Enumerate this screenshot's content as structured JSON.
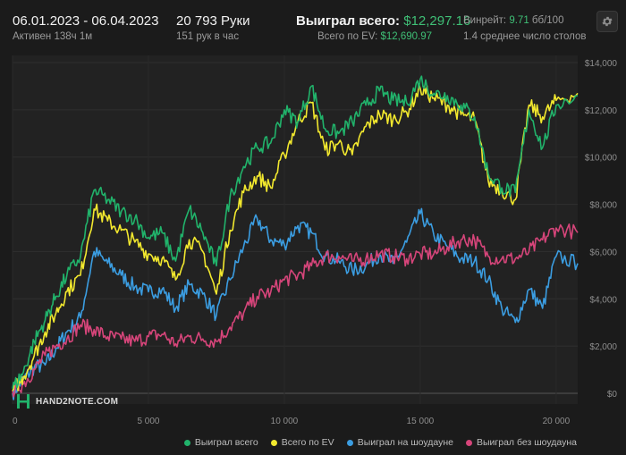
{
  "header": {
    "date_range": "06.01.2023 - 06.04.2023",
    "active": "Активен 138ч 1м",
    "hands": "20 793 Руки",
    "hands_per_hour": "151 рук в час",
    "won_total_label": "Выиграл всего:",
    "won_total_value": "$12,297.16",
    "ev_label": "Всего по EV:",
    "ev_value": "$12,690.97",
    "winrate_label": "Винрейт:",
    "winrate_value": "9.71",
    "winrate_suffix": "бб/100",
    "tables": "1.4 среднее число столов",
    "settings_icon": "gear-icon"
  },
  "logo": {
    "text": "HAND2NOTE.COM"
  },
  "chart_data": {
    "type": "line",
    "xlim": [
      0,
      20793
    ],
    "ylim": [
      -200,
      14000
    ],
    "x_ticks": [
      0,
      5000,
      10000,
      15000,
      20000
    ],
    "x_tick_labels": [
      "0",
      "5 000",
      "10 000",
      "15 000",
      "20 000"
    ],
    "y_ticks": [
      0,
      2000,
      4000,
      6000,
      8000,
      10000,
      12000,
      14000
    ],
    "y_tick_labels": [
      "$0",
      "$2,000",
      "$4,000",
      "$6,000",
      "$8,000",
      "$10,000",
      "$12,000",
      "$14,000"
    ],
    "grid": true,
    "legend_position": "bottom-right",
    "series": [
      {
        "name": "Выиграл всего",
        "color": "#21b36b",
        "x": [
          0,
          400,
          800,
          1200,
          1600,
          2000,
          2500,
          3000,
          3500,
          4000,
          4500,
          5000,
          5500,
          6000,
          6500,
          7000,
          7500,
          8000,
          8500,
          9000,
          9500,
          10000,
          10500,
          11000,
          11500,
          12000,
          12500,
          13000,
          13500,
          14000,
          14500,
          15000,
          15500,
          16000,
          16500,
          17000,
          17500,
          18000,
          18500,
          19000,
          19500,
          20000,
          20793
        ],
        "y": [
          200,
          900,
          2200,
          3100,
          4100,
          5000,
          5800,
          8600,
          8200,
          7700,
          7400,
          6600,
          6800,
          5600,
          7800,
          6800,
          5400,
          8300,
          9600,
          10400,
          10600,
          12000,
          11500,
          13000,
          11200,
          11000,
          11500,
          12200,
          12800,
          12400,
          12300,
          13300,
          12700,
          12600,
          12200,
          11700,
          9300,
          8700,
          8500,
          12000,
          10400,
          12200,
          12600
        ]
      },
      {
        "name": "Всего по EV",
        "color": "#f2e82e",
        "x": [
          0,
          400,
          800,
          1200,
          1600,
          2000,
          2500,
          3000,
          3500,
          4000,
          4500,
          5000,
          5500,
          6000,
          6500,
          7000,
          7500,
          8000,
          8500,
          9000,
          9500,
          10000,
          10500,
          11000,
          11500,
          12000,
          12500,
          13000,
          13500,
          14000,
          14500,
          15000,
          15500,
          16000,
          16500,
          17000,
          17500,
          18000,
          18500,
          19000,
          19500,
          20000,
          20793
        ],
        "y": [
          100,
          700,
          1600,
          2600,
          3400,
          4300,
          5000,
          7800,
          7300,
          6900,
          6400,
          5900,
          5700,
          4800,
          6500,
          6000,
          4200,
          6900,
          8500,
          9200,
          8700,
          10100,
          11500,
          12300,
          10300,
          10600,
          10100,
          11300,
          11800,
          11600,
          11900,
          12900,
          12500,
          12200,
          11800,
          11600,
          9000,
          8600,
          8200,
          12200,
          11700,
          12400,
          12700
        ]
      },
      {
        "name": "Выиграл на шоудауне",
        "color": "#3b9de1",
        "x": [
          0,
          400,
          800,
          1200,
          1600,
          2000,
          2500,
          3000,
          3500,
          4000,
          4500,
          5000,
          5500,
          6000,
          6500,
          7000,
          7500,
          8000,
          8500,
          9000,
          9500,
          10000,
          10500,
          11000,
          11500,
          12000,
          12500,
          13000,
          13500,
          14000,
          14500,
          15000,
          15500,
          16000,
          16500,
          17000,
          17500,
          18000,
          18500,
          19000,
          19500,
          20000,
          20793
        ],
        "y": [
          0,
          600,
          1100,
          1200,
          1900,
          2600,
          3200,
          6000,
          5500,
          5000,
          4500,
          4300,
          4400,
          3600,
          4600,
          4200,
          3300,
          4800,
          6200,
          7400,
          6500,
          6300,
          7100,
          6800,
          5800,
          5600,
          5200,
          5400,
          5900,
          5500,
          6400,
          7600,
          6700,
          6200,
          5700,
          5600,
          4800,
          3600,
          3000,
          4400,
          3600,
          5800,
          5500
        ]
      },
      {
        "name": "Выиграл без шоудауна",
        "color": "#d6457a",
        "x": [
          0,
          400,
          800,
          1200,
          1600,
          2000,
          2500,
          3000,
          3500,
          4000,
          4500,
          5000,
          5500,
          6000,
          6500,
          7000,
          7500,
          8000,
          8500,
          9000,
          9500,
          10000,
          10500,
          11000,
          11500,
          12000,
          12500,
          13000,
          13500,
          14000,
          14500,
          15000,
          15500,
          16000,
          16500,
          17000,
          17500,
          18000,
          18500,
          19000,
          19500,
          20000,
          20793
        ],
        "y": [
          100,
          400,
          1000,
          1600,
          2000,
          2300,
          2900,
          2700,
          2400,
          2300,
          2200,
          2400,
          2500,
          2100,
          2400,
          2300,
          2200,
          2800,
          3400,
          4100,
          4300,
          4800,
          5000,
          5400,
          5800,
          5800,
          5600,
          5700,
          5900,
          5800,
          5700,
          5900,
          5900,
          6200,
          6500,
          6500,
          5800,
          5700,
          5700,
          6000,
          6500,
          7000,
          6800
        ]
      }
    ]
  }
}
